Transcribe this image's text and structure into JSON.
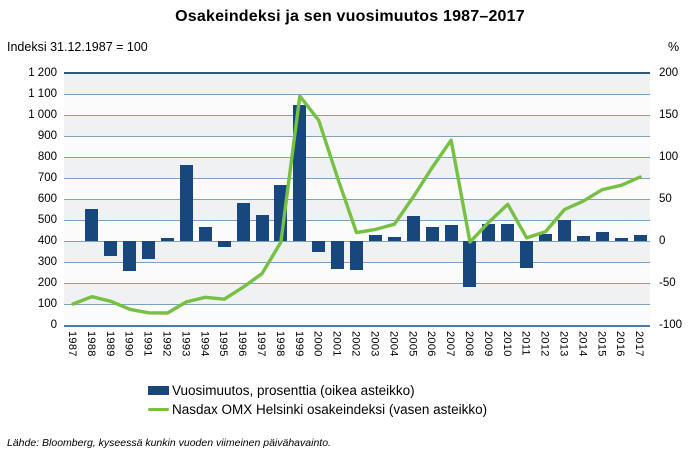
{
  "title": "Osakeindeksi ja sen vuosimuutos 1987–2017",
  "left_axis": {
    "title": "Indeksi 31.12.1987 = 100",
    "ticks": [
      "1 200",
      "1 100",
      "1 000",
      "900",
      "800",
      "700",
      "600",
      "500",
      "400",
      "300",
      "200",
      "100",
      "0"
    ]
  },
  "right_axis": {
    "title": "%",
    "ticks": [
      "200",
      "150",
      "100",
      "50",
      "0",
      "-50",
      "-100"
    ]
  },
  "legend": [
    {
      "label": "Vuosimuutos, prosenttia (oikea asteikko)",
      "marker": "square",
      "color": "#17477D"
    },
    {
      "label": "Nasdax OMX Helsinki osakeindeksi (vasen asteikko)",
      "marker": "line",
      "color": "#76C043"
    }
  ],
  "source": "Lähde: Bloomberg, kyseessä kunkin vuoden viimeinen päivähavainto.",
  "colors": {
    "bar": "#17477D",
    "line": "#76C043",
    "gridline": "#7FA1C1",
    "plot_band_gray": "#F0F1F3",
    "plot_band_white": "#FBFBFC"
  },
  "chart_data": {
    "type": "bar+line combo, dual axis",
    "categories": [
      1987,
      1988,
      1989,
      1990,
      1991,
      1992,
      1993,
      1994,
      1995,
      1996,
      1997,
      1998,
      1999,
      2000,
      2001,
      2002,
      2003,
      2004,
      2005,
      2006,
      2007,
      2008,
      2009,
      2010,
      2011,
      2012,
      2013,
      2014,
      2015,
      2016,
      2017
    ],
    "series": [
      {
        "name": "Vuosimuutos, prosenttia (oikea asteikko)",
        "type": "bar",
        "axis": "right",
        "unit": "%",
        "values": [
          null,
          38,
          -18,
          -36,
          -22,
          4,
          91,
          17,
          -7,
          45,
          31,
          67,
          162,
          -13,
          -33,
          -35,
          7,
          5,
          30,
          17,
          19,
          -55,
          20,
          20,
          -32,
          8,
          25,
          6,
          11,
          3,
          7
        ]
      },
      {
        "name": "Nasdax OMX Helsinki osakeindeksi (vasen asteikko)",
        "type": "line",
        "axis": "left",
        "unit": "index, 31.12.1987 = 100",
        "values": [
          100,
          135,
          113,
          75,
          58,
          57,
          110,
          132,
          123,
          180,
          245,
          395,
          1090,
          975,
          700,
          440,
          455,
          480,
          610,
          750,
          880,
          395,
          490,
          575,
          415,
          445,
          550,
          590,
          645,
          665,
          705
        ]
      }
    ],
    "left_ylim": [
      0,
      1200
    ],
    "left_step": 100,
    "right_ylim": [
      -100,
      200
    ],
    "right_step": 50,
    "grid": "horizontal only",
    "legend_position": "bottom",
    "title": "Osakeindeksi ja sen vuosimuutos 1987–2017"
  }
}
